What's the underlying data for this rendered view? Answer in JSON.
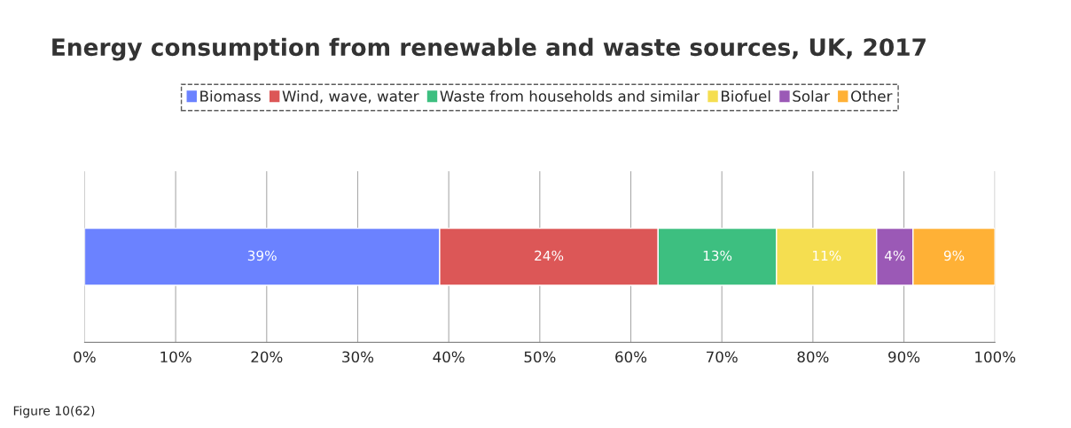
{
  "chart_data": {
    "type": "bar",
    "orientation": "horizontal",
    "stacked": true,
    "title": "Energy consumption from renewable and waste sources, UK, 2017",
    "categories": [
      null
    ],
    "series": [
      {
        "name": "Biomass",
        "color": "#6b82ff",
        "values": [
          39
        ],
        "value_labels": [
          "39%"
        ]
      },
      {
        "name": "Wind, wave, water",
        "color": "#dc5757",
        "values": [
          24
        ],
        "value_labels": [
          "24%"
        ]
      },
      {
        "name": "Waste from households and similar",
        "color": "#3dbf80",
        "values": [
          13
        ],
        "value_labels": [
          "13%"
        ]
      },
      {
        "name": "Biofuel",
        "color": "#f5de50",
        "values": [
          11
        ],
        "value_labels": [
          "11%"
        ]
      },
      {
        "name": "Solar",
        "color": "#9b59b6",
        "values": [
          4
        ],
        "value_labels": [
          "4%"
        ]
      },
      {
        "name": "Other",
        "color": "#ffb136",
        "values": [
          9
        ],
        "value_labels": [
          "9%"
        ]
      }
    ],
    "xlim": [
      0,
      100
    ],
    "xticks": [
      {
        "value": 0,
        "label": "0%"
      },
      {
        "value": 10,
        "label": "10%"
      },
      {
        "value": 20,
        "label": "20%"
      },
      {
        "value": 30,
        "label": "30%"
      },
      {
        "value": 40,
        "label": "40%"
      },
      {
        "value": 50,
        "label": "50%"
      },
      {
        "value": 60,
        "label": "60%"
      },
      {
        "value": 70,
        "label": "70%"
      },
      {
        "value": 80,
        "label": "80%"
      },
      {
        "value": 90,
        "label": "90%"
      },
      {
        "value": 100,
        "label": "100%"
      }
    ],
    "grid": "x",
    "legend": "top",
    "annotations": [
      "Figure 10(62)"
    ]
  }
}
